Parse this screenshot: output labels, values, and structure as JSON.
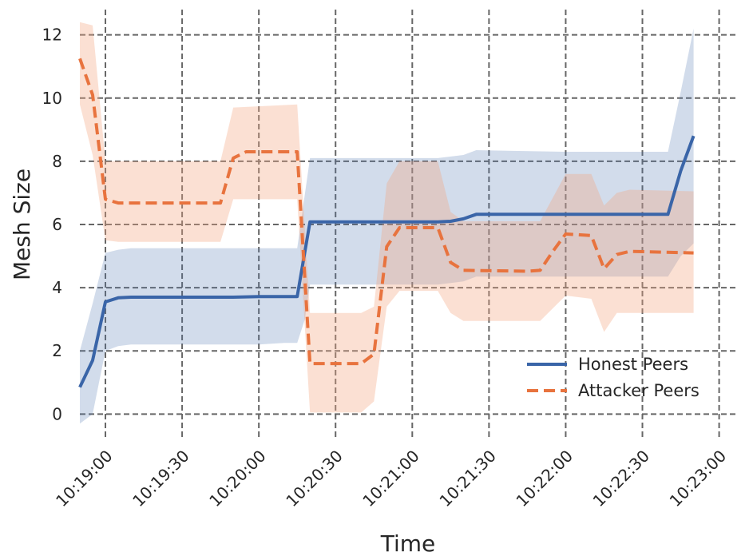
{
  "chart_data": {
    "type": "line",
    "xlabel": "Time",
    "ylabel": "Mesh Size",
    "xlim": [
      "10:18:50",
      "10:23:07"
    ],
    "ylim": [
      -0.8,
      12.8
    ],
    "x_ticks": [
      "10:19:00",
      "10:19:30",
      "10:20:00",
      "10:20:30",
      "10:21:00",
      "10:21:30",
      "10:22:00",
      "10:22:30",
      "10:23:00"
    ],
    "y_ticks": [
      0,
      2,
      4,
      6,
      8,
      10,
      12
    ],
    "grid": true,
    "legend_position": "lower-right",
    "series": [
      {
        "name": "Honest Peers",
        "color": "#3a65a8",
        "band_color": "#4c72b0",
        "line_style": "solid",
        "points": [
          [
            "10:18:50",
            0.85
          ],
          [
            "10:18:55",
            1.7
          ],
          [
            "10:19:00",
            3.55
          ],
          [
            "10:19:05",
            3.68
          ],
          [
            "10:19:10",
            3.7
          ],
          [
            "10:19:30",
            3.7
          ],
          [
            "10:19:50",
            3.7
          ],
          [
            "10:20:00",
            3.72
          ],
          [
            "10:20:10",
            3.72
          ],
          [
            "10:20:15",
            3.72
          ],
          [
            "10:20:20",
            6.08
          ],
          [
            "10:20:30",
            6.08
          ],
          [
            "10:20:50",
            6.08
          ],
          [
            "10:21:10",
            6.08
          ],
          [
            "10:21:15",
            6.1
          ],
          [
            "10:21:20",
            6.18
          ],
          [
            "10:21:25",
            6.32
          ],
          [
            "10:21:40",
            6.32
          ],
          [
            "10:22:00",
            6.32
          ],
          [
            "10:22:20",
            6.32
          ],
          [
            "10:22:40",
            6.32
          ],
          [
            "10:22:45",
            7.7
          ],
          [
            "10:22:50",
            8.8
          ]
        ],
        "lower": [
          [
            "10:18:50",
            -0.3
          ],
          [
            "10:18:55",
            0.0
          ],
          [
            "10:19:00",
            2.0
          ],
          [
            "10:19:05",
            2.15
          ],
          [
            "10:19:10",
            2.2
          ],
          [
            "10:20:00",
            2.2
          ],
          [
            "10:20:10",
            2.25
          ],
          [
            "10:20:15",
            2.25
          ],
          [
            "10:20:18",
            3.0
          ],
          [
            "10:20:20",
            4.1
          ],
          [
            "10:21:10",
            4.1
          ],
          [
            "10:21:20",
            4.2
          ],
          [
            "10:21:25",
            4.35
          ],
          [
            "10:22:40",
            4.35
          ],
          [
            "10:22:45",
            5.0
          ],
          [
            "10:22:50",
            5.4
          ]
        ],
        "upper": [
          [
            "10:18:50",
            2.0
          ],
          [
            "10:18:55",
            3.5
          ],
          [
            "10:19:00",
            5.1
          ],
          [
            "10:19:05",
            5.2
          ],
          [
            "10:19:10",
            5.25
          ],
          [
            "10:20:00",
            5.25
          ],
          [
            "10:20:15",
            5.25
          ],
          [
            "10:20:20",
            8.1
          ],
          [
            "10:21:10",
            8.1
          ],
          [
            "10:21:20",
            8.2
          ],
          [
            "10:21:25",
            8.35
          ],
          [
            "10:22:00",
            8.3
          ],
          [
            "10:22:40",
            8.3
          ],
          [
            "10:22:45",
            10.2
          ],
          [
            "10:22:50",
            12.2
          ]
        ]
      },
      {
        "name": "Attacker Peers",
        "color": "#e8733e",
        "band_color": "#f4a582",
        "line_style": "dashed",
        "points": [
          [
            "10:18:50",
            11.25
          ],
          [
            "10:18:55",
            10.1
          ],
          [
            "10:19:00",
            6.8
          ],
          [
            "10:19:05",
            6.68
          ],
          [
            "10:19:20",
            6.68
          ],
          [
            "10:19:45",
            6.68
          ],
          [
            "10:19:50",
            8.1
          ],
          [
            "10:19:55",
            8.3
          ],
          [
            "10:20:10",
            8.3
          ],
          [
            "10:20:15",
            8.3
          ],
          [
            "10:20:20",
            1.6
          ],
          [
            "10:20:40",
            1.6
          ],
          [
            "10:20:45",
            1.9
          ],
          [
            "10:20:50",
            5.3
          ],
          [
            "10:20:55",
            5.9
          ],
          [
            "10:21:10",
            5.9
          ],
          [
            "10:21:15",
            4.8
          ],
          [
            "10:21:20",
            4.55
          ],
          [
            "10:21:45",
            4.52
          ],
          [
            "10:21:50",
            4.55
          ],
          [
            "10:21:55",
            5.15
          ],
          [
            "10:22:00",
            5.7
          ],
          [
            "10:22:10",
            5.65
          ],
          [
            "10:22:15",
            4.6
          ],
          [
            "10:22:20",
            5.05
          ],
          [
            "10:22:25",
            5.15
          ],
          [
            "10:22:50",
            5.1
          ]
        ],
        "lower": [
          [
            "10:18:50",
            9.8
          ],
          [
            "10:18:55",
            8.2
          ],
          [
            "10:19:00",
            5.5
          ],
          [
            "10:19:05",
            5.45
          ],
          [
            "10:19:45",
            5.45
          ],
          [
            "10:19:50",
            6.8
          ],
          [
            "10:20:15",
            6.8
          ],
          [
            "10:20:20",
            0.05
          ],
          [
            "10:20:40",
            0.05
          ],
          [
            "10:20:45",
            0.4
          ],
          [
            "10:20:50",
            3.4
          ],
          [
            "10:20:55",
            3.9
          ],
          [
            "10:21:10",
            3.9
          ],
          [
            "10:21:15",
            3.2
          ],
          [
            "10:21:20",
            2.95
          ],
          [
            "10:21:50",
            2.95
          ],
          [
            "10:22:00",
            3.75
          ],
          [
            "10:22:10",
            3.65
          ],
          [
            "10:22:15",
            2.6
          ],
          [
            "10:22:20",
            3.2
          ],
          [
            "10:22:50",
            3.2
          ]
        ],
        "upper": [
          [
            "10:18:50",
            12.4
          ],
          [
            "10:18:55",
            12.3
          ],
          [
            "10:19:00",
            8.0
          ],
          [
            "10:19:45",
            8.0
          ],
          [
            "10:19:50",
            9.7
          ],
          [
            "10:20:15",
            9.8
          ],
          [
            "10:20:20",
            3.2
          ],
          [
            "10:20:40",
            3.2
          ],
          [
            "10:20:45",
            3.4
          ],
          [
            "10:20:50",
            7.3
          ],
          [
            "10:20:55",
            8.0
          ],
          [
            "10:21:10",
            8.0
          ],
          [
            "10:21:15",
            6.4
          ],
          [
            "10:21:20",
            6.1
          ],
          [
            "10:21:50",
            6.1
          ],
          [
            "10:22:00",
            7.6
          ],
          [
            "10:22:10",
            7.6
          ],
          [
            "10:22:15",
            6.6
          ],
          [
            "10:22:20",
            7.0
          ],
          [
            "10:22:25",
            7.1
          ],
          [
            "10:22:50",
            7.05
          ]
        ]
      }
    ]
  }
}
